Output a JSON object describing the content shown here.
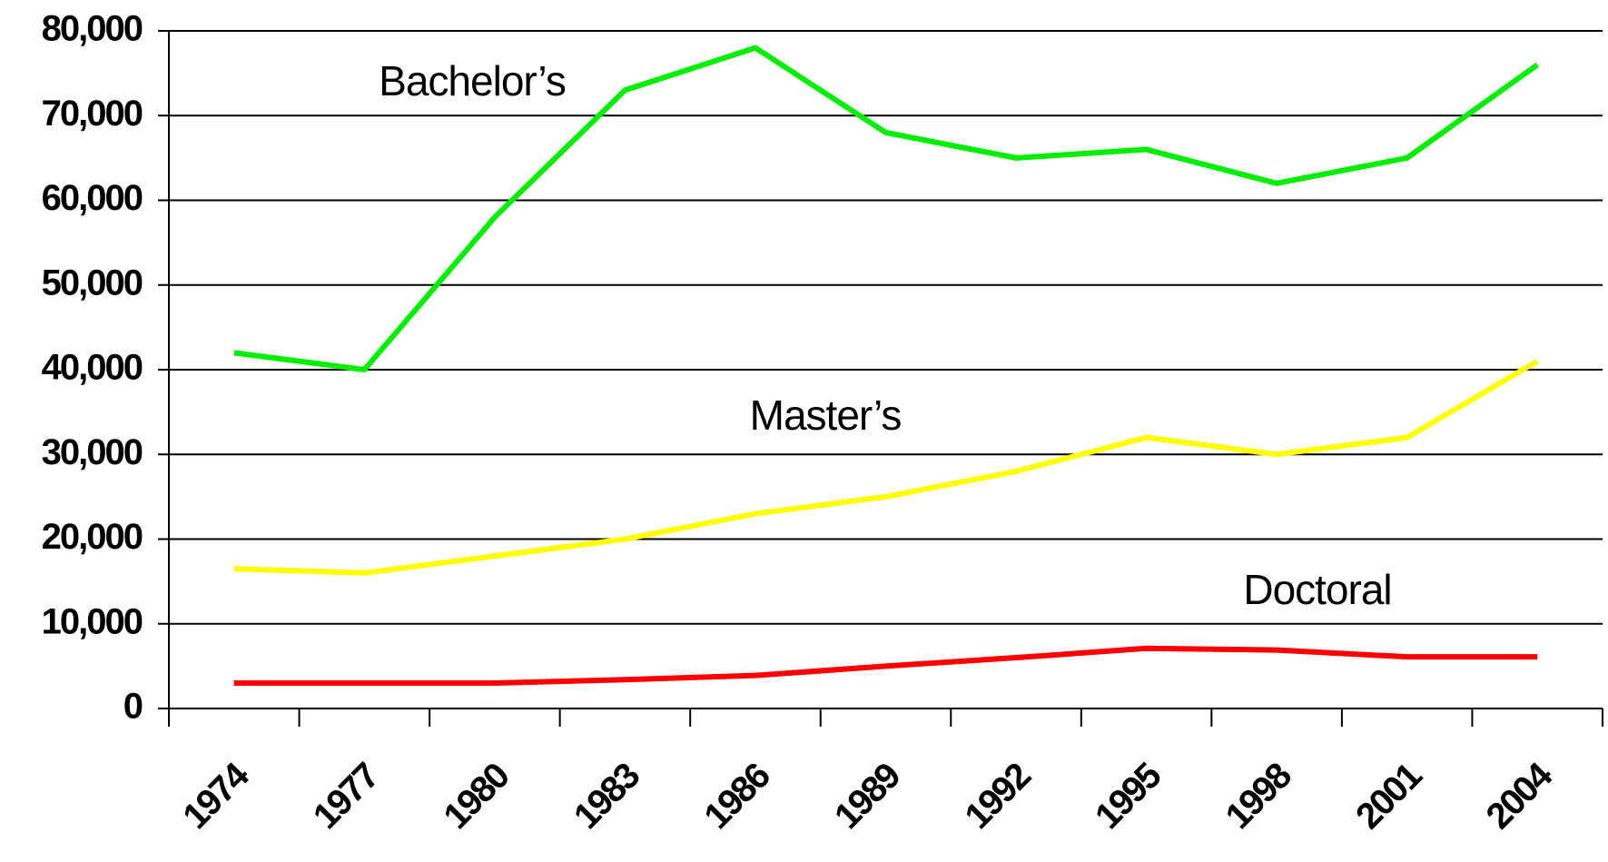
{
  "chart_data": {
    "type": "line",
    "categories": [
      "1974",
      "1977",
      "1980",
      "1983",
      "1986",
      "1989",
      "1992",
      "1995",
      "1998",
      "2001",
      "2004"
    ],
    "series": [
      {
        "name": "Bachelor’s",
        "color": "#00ee00",
        "values": [
          42000,
          40000,
          58000,
          73000,
          78000,
          68000,
          65000,
          66000,
          62000,
          65000,
          76000
        ]
      },
      {
        "name": "Master’s",
        "color": "#ffff00",
        "values": [
          16500,
          16000,
          18000,
          20000,
          23000,
          25000,
          28000,
          32000,
          30000,
          32000,
          41000
        ]
      },
      {
        "name": "Doctoral",
        "color": "#ff0000",
        "values": [
          3000,
          3000,
          3000,
          3400,
          3900,
          5000,
          6000,
          7100,
          6900,
          6100,
          6100
        ]
      }
    ],
    "ylim": [
      0,
      80000
    ],
    "yticks": [
      0,
      {
        "value": 10000,
        "label": "10,000"
      },
      {
        "value": 20000,
        "label": "20,000"
      },
      {
        "value": 30000,
        "label": "30,000"
      },
      {
        "value": 40000,
        "label": "40,000"
      },
      {
        "value": 50000,
        "label": "50,000"
      },
      {
        "value": 60000,
        "label": "60,000"
      },
      {
        "value": 70000,
        "label": "70,000"
      },
      {
        "value": 80000,
        "label": "80,000"
      }
    ],
    "grid": true
  }
}
